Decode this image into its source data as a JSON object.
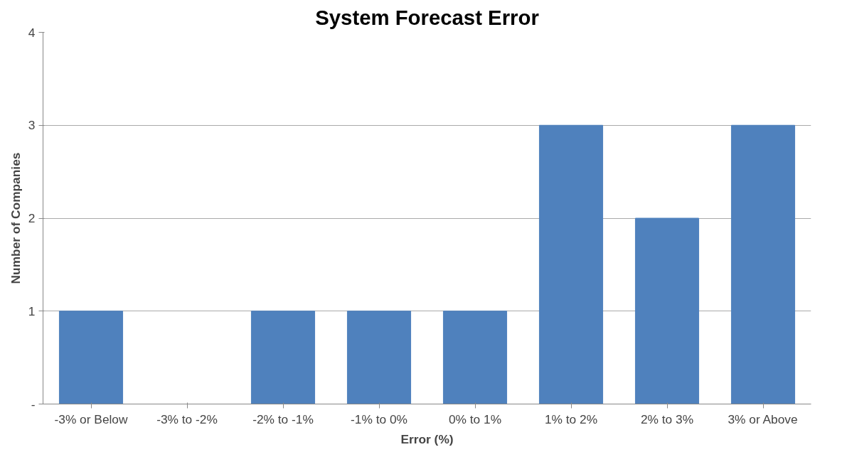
{
  "chart_data": {
    "type": "bar",
    "title": "System Forecast Error",
    "xlabel": "Error (%)",
    "ylabel": "Number of Companies",
    "categories": [
      "-3% or Below",
      "-3% to -2%",
      "-2% to -1%",
      "-1% to 0%",
      "0% to 1%",
      "1% to 2%",
      "2% to 3%",
      "3% or Above"
    ],
    "values": [
      1,
      0,
      1,
      1,
      1,
      3,
      2,
      3
    ],
    "color": "#4f81bd",
    "ylim": [
      0,
      4
    ],
    "yticks": [
      {
        "value": 0,
        "label": "-"
      },
      1,
      2,
      3,
      4
    ],
    "grid": "y"
  }
}
